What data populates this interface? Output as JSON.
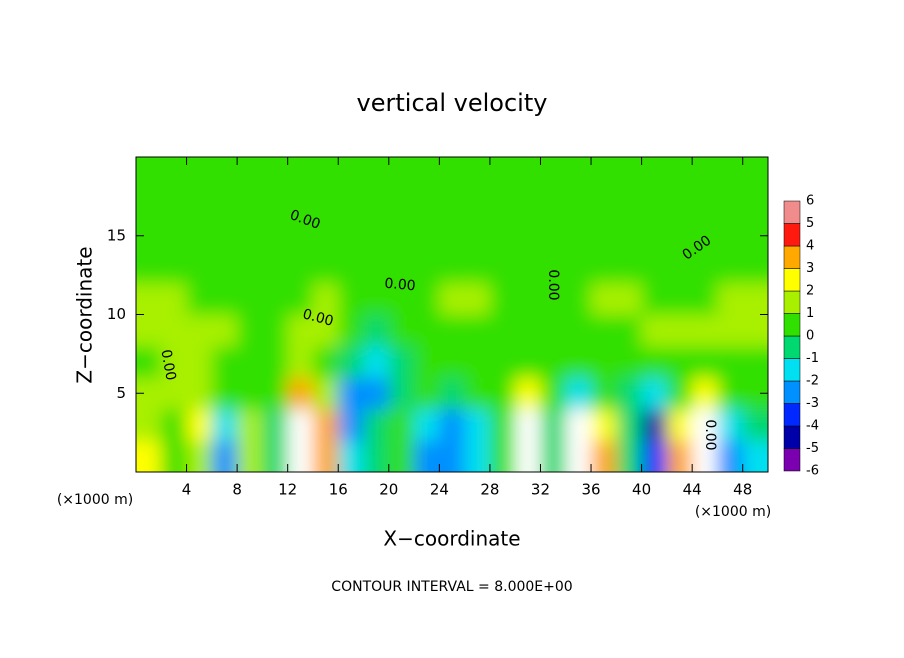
{
  "chart_data": {
    "type": "heatmap",
    "title": "vertical velocity",
    "x_label": "X−coordinate",
    "y_label": "Z−coordinate",
    "x_unit_label": "(×1000 m)",
    "x_unit_label_right": "(×1000 m)",
    "footer": "CONTOUR INTERVAL = 8.000E+00",
    "contour_labels": [
      "0.00",
      "0.00",
      "0.00",
      "0.00",
      "0.00",
      "0.00",
      "0.00"
    ],
    "xlim": [
      0,
      50
    ],
    "ylim": [
      0,
      20
    ],
    "xticks": [
      4,
      8,
      12,
      16,
      20,
      24,
      28,
      32,
      36,
      40,
      44,
      48
    ],
    "yticks": [
      5,
      10,
      15
    ],
    "x": [
      1,
      3,
      5,
      7,
      9,
      11,
      13,
      15,
      17,
      19,
      21,
      23,
      25,
      27,
      29,
      31,
      33,
      35,
      37,
      39,
      41,
      43,
      45,
      47,
      49
    ],
    "y": [
      1,
      3,
      5,
      7,
      9,
      11,
      13,
      15,
      17,
      19
    ],
    "z": [
      [
        2.5,
        0.5,
        1,
        -3,
        1,
        -1,
        6,
        3,
        -1.5,
        -1,
        0,
        -3,
        -3,
        -1.5,
        0,
        6,
        -1,
        -6,
        3,
        -1,
        -4,
        3,
        6,
        -3,
        -2
      ],
      [
        1,
        0.5,
        2,
        -2,
        1,
        -1,
        6,
        3,
        -3,
        -1,
        0,
        -2,
        -3,
        -2,
        0,
        6,
        -1,
        -6,
        2,
        -1,
        -5,
        2,
        6,
        -2,
        -1
      ],
      [
        1,
        1,
        1,
        0,
        0,
        0,
        3,
        1,
        -3,
        -3,
        -1,
        0,
        -1,
        0,
        0,
        2,
        0,
        -2,
        0,
        -1,
        -2,
        0,
        2,
        0,
        0
      ],
      [
        0.5,
        1,
        1,
        0.5,
        0.5,
        0,
        1,
        0.5,
        -1,
        -2,
        -1,
        0,
        0,
        0,
        0,
        0.5,
        0,
        0,
        0,
        0,
        0,
        0,
        0.5,
        0,
        0.5
      ],
      [
        1,
        1,
        1,
        1,
        0.5,
        0.5,
        1,
        1,
        0,
        -1,
        0,
        0.5,
        0.5,
        0.5,
        0.5,
        0.5,
        0.5,
        0.5,
        0.5,
        0.5,
        1,
        1,
        1,
        1,
        1
      ],
      [
        1,
        1,
        0.5,
        0.5,
        0.5,
        0.5,
        0.5,
        1,
        0.5,
        0,
        0.5,
        0.5,
        1,
        1,
        0.5,
        0.5,
        0.5,
        0.5,
        1,
        1,
        0.5,
        0.5,
        0.5,
        1,
        1
      ],
      [
        0.5,
        0.5,
        0.5,
        0.5,
        0.5,
        0.5,
        0.5,
        0.5,
        0.5,
        0.5,
        0.5,
        0.5,
        0.5,
        0.5,
        0.5,
        0.5,
        0.5,
        0.5,
        0.5,
        0.5,
        0.5,
        0.5,
        0.5,
        0.5,
        0.5
      ],
      [
        0.5,
        0.5,
        0.5,
        0.5,
        0,
        0.5,
        0.5,
        0.5,
        0.5,
        0.5,
        0.5,
        0.5,
        0.5,
        0.5,
        0.5,
        0.5,
        0.5,
        0.5,
        0.5,
        0.5,
        0.5,
        0.5,
        0.5,
        0.5,
        0.5
      ],
      [
        0.5,
        0.5,
        0.5,
        0.5,
        0.5,
        0.5,
        0.5,
        0.5,
        0.5,
        0.5,
        0.5,
        0.5,
        0.5,
        0.5,
        0.5,
        0.5,
        0.5,
        0.5,
        0.5,
        0.5,
        0.5,
        0.5,
        0.5,
        0.5,
        0.5
      ],
      [
        0.5,
        0.5,
        0.5,
        0.5,
        0.5,
        0.5,
        0.5,
        0.5,
        0.5,
        0.5,
        0.5,
        0.5,
        0.5,
        0.5,
        0.5,
        0.5,
        0.5,
        0.5,
        0.5,
        0.5,
        0.5,
        0.5,
        0.5,
        0.5,
        0.5
      ]
    ],
    "color_levels": [
      -6,
      -5,
      -4,
      -3,
      -2,
      -1,
      0,
      1,
      2,
      3,
      4,
      5,
      6
    ],
    "colors": [
      "#7a00b0",
      "#0000a8",
      "#0028ff",
      "#0090ff",
      "#00e0f0",
      "#00d870",
      "#30e000",
      "#a8f000",
      "#ffff00",
      "#ffa800",
      "#ff1a10",
      "#f08c8c"
    ],
    "over_color": "#ffffff"
  }
}
